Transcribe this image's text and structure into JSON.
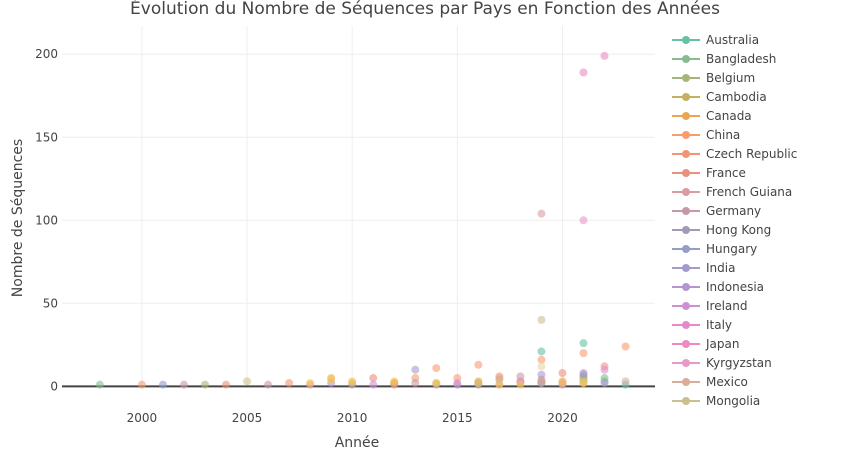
{
  "chart_data": {
    "type": "scatter",
    "title": "Évolution du Nombre de Séquences par Pays en Fonction des Années",
    "xlabel": "Année",
    "ylabel": "Nombre de Séquences",
    "xlim": [
      1996.2,
      2024.4
    ],
    "ylim": [
      -1,
      217
    ],
    "x_ticks": [
      2000,
      2005,
      2010,
      2015,
      2020
    ],
    "y_ticks": [
      0,
      50,
      100,
      150,
      200
    ],
    "grid": true,
    "legend_position": "right",
    "series": [
      {
        "name": "Australia",
        "color": "#66c2a5",
        "points": [
          [
            2019,
            21
          ],
          [
            2021,
            26
          ],
          [
            2022,
            3
          ],
          [
            2023,
            1
          ]
        ]
      },
      {
        "name": "Bangladesh",
        "color": "#86bc8f",
        "points": [
          [
            1998,
            1
          ],
          [
            2021,
            4
          ],
          [
            2022,
            5
          ]
        ]
      },
      {
        "name": "Belgium",
        "color": "#a6b679",
        "points": [
          [
            2003,
            1
          ],
          [
            2019,
            3
          ],
          [
            2021,
            5
          ]
        ]
      },
      {
        "name": "Cambodia",
        "color": "#c5af63",
        "points": [
          [
            2012,
            2
          ],
          [
            2017,
            4
          ],
          [
            2019,
            2
          ],
          [
            2021,
            6
          ]
        ]
      },
      {
        "name": "Canada",
        "color": "#e9a657",
        "points": [
          [
            2009,
            5
          ],
          [
            2016,
            3
          ],
          [
            2020,
            3
          ]
        ]
      },
      {
        "name": "China",
        "color": "#f99b6f",
        "points": [
          [
            2000,
            1
          ],
          [
            2013,
            5
          ],
          [
            2014,
            11
          ],
          [
            2015,
            5
          ],
          [
            2016,
            13
          ],
          [
            2017,
            6
          ],
          [
            2019,
            16
          ],
          [
            2021,
            20
          ],
          [
            2023,
            24
          ]
        ]
      },
      {
        "name": "Czech Republic",
        "color": "#f39475",
        "points": [
          [
            2007,
            2
          ],
          [
            2012,
            1
          ],
          [
            2018,
            3
          ],
          [
            2022,
            12
          ]
        ]
      },
      {
        "name": "France",
        "color": "#e9907e",
        "points": [
          [
            2004,
            1
          ],
          [
            2011,
            5
          ],
          [
            2019,
            4
          ],
          [
            2020,
            8
          ]
        ]
      },
      {
        "name": "French Guiana",
        "color": "#dc9ba0",
        "points": [
          [
            2012,
            2
          ],
          [
            2019,
            104
          ],
          [
            2021,
            2
          ]
        ]
      },
      {
        "name": "Germany",
        "color": "#c49aa5",
        "points": [
          [
            2002,
            1
          ],
          [
            2006,
            1
          ],
          [
            2013,
            2
          ],
          [
            2018,
            6
          ]
        ]
      },
      {
        "name": "Hong Kong",
        "color": "#a49ab5",
        "points": [
          [
            2010,
            1
          ],
          [
            2016,
            2
          ],
          [
            2021,
            7
          ]
        ]
      },
      {
        "name": "Hungary",
        "color": "#959dc8",
        "points": [
          [
            2001,
            1
          ],
          [
            2015,
            1
          ],
          [
            2019,
            2
          ]
        ]
      },
      {
        "name": "India",
        "color": "#a59ad0",
        "points": [
          [
            2013,
            10
          ],
          [
            2016,
            1
          ],
          [
            2019,
            7
          ],
          [
            2021,
            8
          ]
        ]
      },
      {
        "name": "Indonesia",
        "color": "#b694d1",
        "points": [
          [
            2009,
            2
          ],
          [
            2014,
            1
          ],
          [
            2018,
            2
          ],
          [
            2022,
            2
          ]
        ]
      },
      {
        "name": "Ireland",
        "color": "#cf8fd0",
        "points": [
          [
            2011,
            1
          ],
          [
            2017,
            1
          ],
          [
            2020,
            1
          ]
        ]
      },
      {
        "name": "Italy",
        "color": "#e38ccb",
        "points": [
          [
            2008,
            1
          ],
          [
            2015,
            2
          ],
          [
            2020,
            2
          ],
          [
            2022,
            10
          ]
        ]
      },
      {
        "name": "Japan",
        "color": "#ed8ac1",
        "points": [
          [
            2021,
            189
          ],
          [
            2022,
            199
          ]
        ]
      },
      {
        "name": "Kyrgyzstan",
        "color": "#e89ac7",
        "points": [
          [
            2018,
            3
          ],
          [
            2021,
            100
          ]
        ]
      },
      {
        "name": "Mexico",
        "color": "#d9ad99",
        "points": [
          [
            2010,
            2
          ],
          [
            2017,
            5
          ],
          [
            2019,
            3
          ],
          [
            2023,
            3
          ]
        ]
      },
      {
        "name": "Mongolia",
        "color": "#cbc08d",
        "points": [
          [
            2005,
            3
          ],
          [
            2014,
            2
          ],
          [
            2019,
            40
          ],
          [
            2021,
            3
          ]
        ]
      },
      {
        "name": "",
        "color": "#f5c842",
        "points": [
          [
            2008,
            2
          ],
          [
            2009,
            4
          ],
          [
            2010,
            3
          ],
          [
            2012,
            3
          ],
          [
            2014,
            2
          ],
          [
            2016,
            2
          ],
          [
            2017,
            1
          ],
          [
            2018,
            1
          ],
          [
            2020,
            2
          ],
          [
            2021,
            2
          ]
        ]
      },
      {
        "name": "",
        "color": "#e8d6a8",
        "points": [
          [
            2019,
            12
          ]
        ]
      }
    ]
  }
}
